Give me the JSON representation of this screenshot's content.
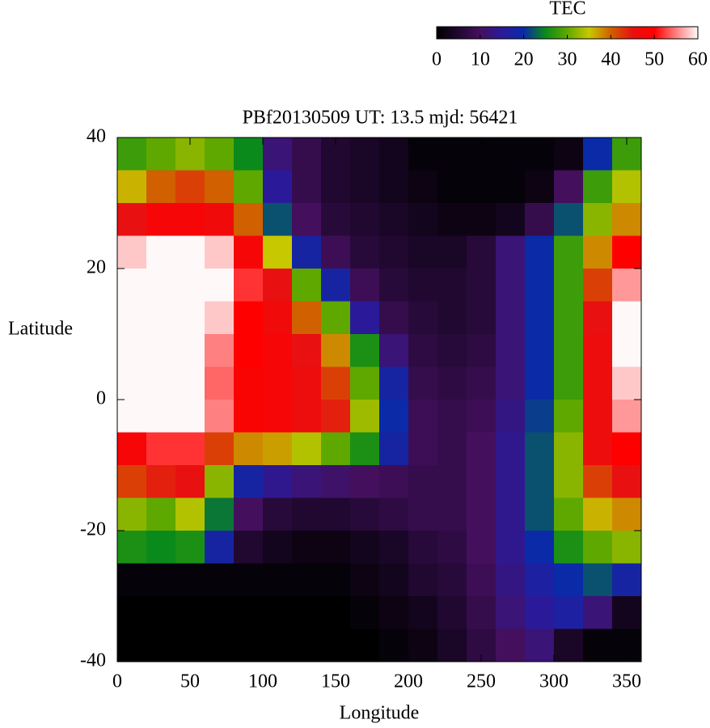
{
  "chart_data": {
    "type": "heatmap",
    "title": "PBf20130509  UT: 13.5  mjd: 56421",
    "xlabel": "Longitude",
    "ylabel": "Latitude",
    "x": [
      10,
      30,
      50,
      70,
      90,
      110,
      130,
      150,
      170,
      190,
      210,
      230,
      250,
      270,
      290,
      310,
      330,
      350
    ],
    "y": [
      37.5,
      32.5,
      27.5,
      22.5,
      17.5,
      12.5,
      7.5,
      2.5,
      -2.5,
      -7.5,
      -12.5,
      -17.5,
      -22.5,
      -27.5,
      -32.5,
      -37.5
    ],
    "z": [
      [
        28,
        30,
        32,
        30,
        25,
        12,
        8,
        5,
        4,
        3,
        1,
        1,
        1,
        1,
        1,
        2,
        20,
        28
      ],
      [
        36,
        40,
        42,
        40,
        30,
        15,
        8,
        5,
        4,
        3,
        2,
        1,
        1,
        1,
        2,
        10,
        28,
        34
      ],
      [
        45,
        48,
        48,
        47,
        40,
        22,
        10,
        6,
        5,
        4,
        3,
        2,
        2,
        3,
        8,
        22,
        32,
        38
      ],
      [
        58,
        60,
        60,
        58,
        48,
        35,
        18,
        9,
        6,
        5,
        4,
        4,
        6,
        12,
        20,
        28,
        38,
        50
      ],
      [
        60,
        60,
        60,
        60,
        52,
        45,
        30,
        18,
        9,
        6,
        5,
        5,
        6,
        12,
        20,
        28,
        42,
        56
      ],
      [
        60,
        60,
        60,
        58,
        50,
        47,
        40,
        30,
        15,
        8,
        6,
        5,
        6,
        12,
        20,
        28,
        45,
        60
      ],
      [
        60,
        60,
        60,
        55,
        50,
        48,
        45,
        38,
        26,
        12,
        7,
        6,
        7,
        12,
        20,
        28,
        46,
        60
      ],
      [
        60,
        60,
        60,
        54,
        49,
        48,
        46,
        42,
        30,
        18,
        8,
        7,
        8,
        12,
        20,
        28,
        46,
        58
      ],
      [
        60,
        60,
        60,
        55,
        49,
        48,
        46,
        44,
        33,
        20,
        9,
        8,
        9,
        13,
        21,
        30,
        46,
        56
      ],
      [
        48,
        52,
        52,
        42,
        38,
        37,
        34,
        30,
        26,
        18,
        9,
        8,
        10,
        14,
        22,
        32,
        46,
        50
      ],
      [
        42,
        44,
        45,
        32,
        18,
        14,
        12,
        11,
        10,
        9,
        8,
        8,
        10,
        14,
        22,
        32,
        42,
        45
      ],
      [
        32,
        30,
        34,
        24,
        10,
        6,
        5,
        5,
        6,
        7,
        8,
        8,
        10,
        14,
        22,
        30,
        36,
        38
      ],
      [
        26,
        25,
        26,
        18,
        5,
        3,
        2,
        2,
        3,
        4,
        6,
        7,
        10,
        14,
        20,
        26,
        30,
        32
      ],
      [
        1,
        1,
        1,
        1,
        1,
        1,
        1,
        1,
        2,
        3,
        5,
        6,
        9,
        13,
        17,
        20,
        22,
        18
      ],
      [
        0,
        0,
        0,
        0,
        0,
        0,
        0,
        0,
        1,
        2,
        3,
        5,
        8,
        12,
        15,
        17,
        12,
        3
      ],
      [
        0,
        0,
        0,
        0,
        0,
        0,
        0,
        0,
        0,
        1,
        2,
        4,
        7,
        10,
        12,
        4,
        1,
        1
      ]
    ],
    "xlim": [
      0,
      360
    ],
    "xticks": [
      0,
      50,
      100,
      150,
      200,
      250,
      300,
      350
    ],
    "ylim": [
      -40,
      40
    ],
    "yticks": [
      -40,
      -20,
      0,
      20,
      40
    ],
    "colorbar": {
      "label": "TEC",
      "lim": [
        0,
        60
      ],
      "ticks": [
        0,
        10,
        20,
        30,
        40,
        50,
        60
      ],
      "colormap": [
        "#000000",
        "#200830",
        "#44105e",
        "#2a1a9a",
        "#0a2aa8",
        "#0a8a1a",
        "#5fa800",
        "#c8c800",
        "#d06000",
        "#e81010",
        "#ff0000",
        "#ff8080",
        "#fff8f8"
      ]
    }
  }
}
